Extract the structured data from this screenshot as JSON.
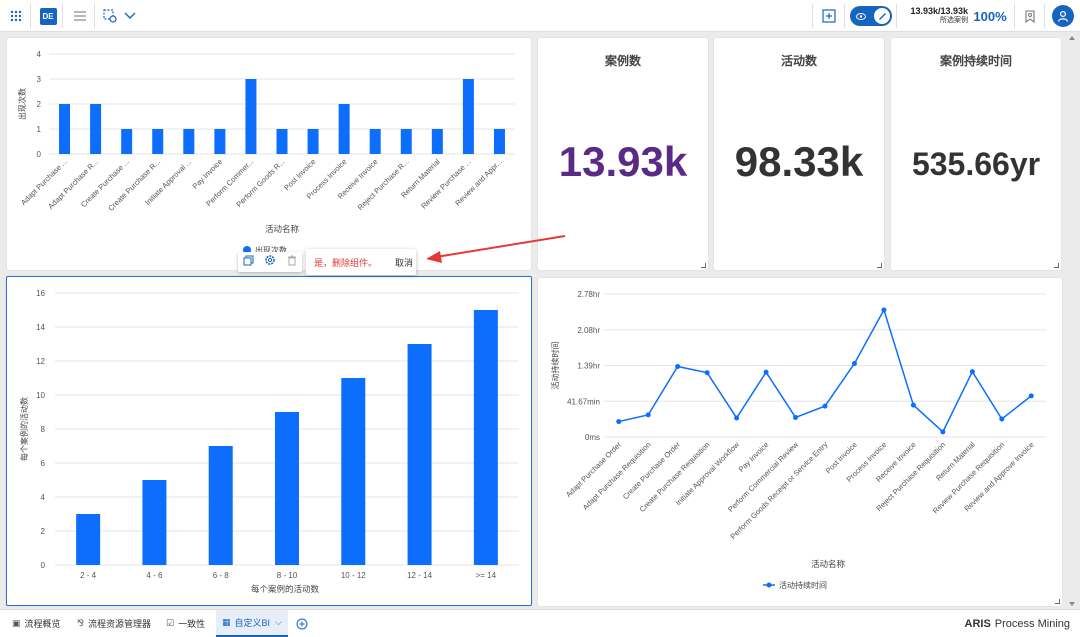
{
  "topbar": {
    "de_badge": "DE",
    "cases_ratio": "13.93k/13.93k",
    "cases_label": "所选案例",
    "percent": "100%"
  },
  "kpis": [
    {
      "title": "案例数",
      "value": "13.93k",
      "color": "#5b2a86"
    },
    {
      "title": "活动数",
      "value": "98.33k",
      "color": "#333333"
    },
    {
      "title": "案例持续时间",
      "value": "535.66yr",
      "color": "#333333"
    }
  ],
  "widget_confirm": {
    "yes_label": "是，删除组件。",
    "cancel_label": "取消"
  },
  "bottom_tabs": [
    {
      "label": "流程概览",
      "icon": "image-icon"
    },
    {
      "label": "流程资源管理器",
      "icon": "flow-icon"
    },
    {
      "label": "一致性",
      "icon": "conformance-icon"
    },
    {
      "label": "自定义BI",
      "icon": "dashboard-icon"
    }
  ],
  "brand": {
    "bold": "ARIS",
    "rest": "Process Mining"
  },
  "chart_data": [
    {
      "type": "bar",
      "categories": [
        "Adapt Purchase ...",
        "Adapt Purchase R...",
        "Create Purchase ...",
        "Create Purchase R...",
        "Initiate Approval ...",
        "Pay Invoice",
        "Perform Commer...",
        "Perform Goods R...",
        "Post Invoice",
        "Process Invoice",
        "Receive Invoice",
        "Reject Purchase R...",
        "Return Material",
        "Review Purchase ...",
        "Review and Appr..."
      ],
      "values": [
        2,
        2,
        1,
        1,
        1,
        1,
        3,
        1,
        1,
        2,
        1,
        1,
        1,
        3,
        1
      ],
      "xlabel": "活动名称",
      "ylabel": "出现次数",
      "legend": "出现次数",
      "ylim": [
        0,
        4
      ],
      "yticks": [
        "0",
        "1",
        "2",
        "3",
        "4"
      ],
      "color": "#0d6efd"
    },
    {
      "type": "bar",
      "categories": [
        "2 - 4",
        "4 - 6",
        "6 - 8",
        "8 - 10",
        "10 - 12",
        "12 - 14",
        ">= 14"
      ],
      "values": [
        3,
        5,
        7,
        9,
        11,
        13,
        15
      ],
      "xlabel": "每个案例的活动数",
      "ylabel": "每个案例的活动数",
      "ylim": [
        0,
        16
      ],
      "yticks": [
        "0",
        "2",
        "4",
        "6",
        "8",
        "10",
        "12",
        "14",
        "16"
      ],
      "color": "#0d6efd"
    },
    {
      "type": "line",
      "categories": [
        "Adapt Purchase Order",
        "Adapt Purchase Requisition",
        "Create Purchase Order",
        "Create Purchase Requisition",
        "Initiate Approval Workflow",
        "Pay Invoice",
        "Perform Commercial Review",
        "Perform Goods Receipt or Service Entry",
        "Post Invoice",
        "Process Invoice",
        "Receive Invoice",
        "Reject Purchase Requisition",
        "Return Material",
        "Review Purchase Requisition",
        "Review and Approve Invoice"
      ],
      "values_hr": [
        0.3,
        0.43,
        1.37,
        1.25,
        0.37,
        1.26,
        0.38,
        0.6,
        1.43,
        2.47,
        0.62,
        0.1,
        1.27,
        0.35,
        0.8
      ],
      "xlabel": "活动名称",
      "ylabel": "活动持续时间",
      "legend": "活动持续时间",
      "ylim_hr": [
        0,
        2.78
      ],
      "yticks": [
        "0ms",
        "41.67min",
        "1.39hr",
        "2.08hr",
        "2.78hr"
      ],
      "color": "#0d6efd"
    }
  ]
}
